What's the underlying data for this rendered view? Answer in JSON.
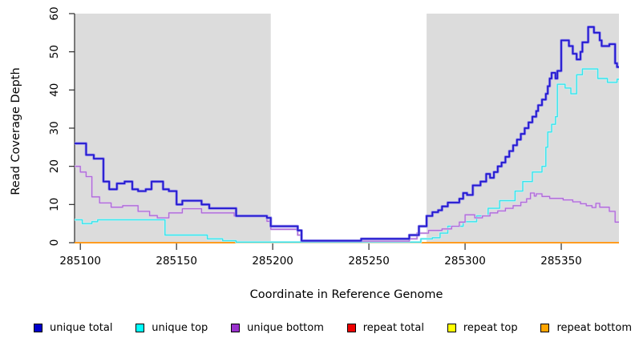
{
  "chart_data": {
    "type": "line",
    "step": true,
    "title": "",
    "xlabel": "Coordinate in Reference Genome",
    "ylabel": "Read Coverage Depth",
    "xlim": [
      285097,
      285380
    ],
    "ylim": [
      0,
      60
    ],
    "x_ticks": [
      285100,
      285150,
      285200,
      285250,
      285300,
      285350
    ],
    "y_ticks": [
      0,
      10,
      20,
      30,
      40,
      50,
      60
    ],
    "grid": false,
    "legend_position": "bottom",
    "background_color": "#ffffff",
    "shaded_band_color": "#dcdcdc",
    "shaded_regions": [
      {
        "name": "left-flank-band",
        "x0": 285097,
        "x1": 285199
      },
      {
        "name": "right-flank-band",
        "x0": 285280,
        "x1": 285380
      }
    ],
    "series": [
      {
        "name": "repeat total",
        "slug": "repeat-total",
        "in_legend": true,
        "line_color": "#e00000",
        "width": 1.6,
        "x_end": 285380,
        "steps": [
          [
            285097,
            0
          ]
        ]
      },
      {
        "name": "repeat top",
        "slug": "repeat-top",
        "in_legend": true,
        "line_color": "#ffff00",
        "width": 1.6,
        "x_end": 285380,
        "steps": [
          [
            285097,
            0
          ]
        ]
      },
      {
        "name": "repeat bottom",
        "slug": "repeat-bottom",
        "in_legend": true,
        "line_color": "#ff9c20",
        "width": 2,
        "x_end": 285380,
        "steps": [
          [
            285097,
            0
          ]
        ]
      },
      {
        "name": "zero overlap segment",
        "slug": "zero-overlap-segment",
        "in_legend": false,
        "line_color": "#8bcd8b",
        "width": 1.4,
        "x_end": 285272,
        "steps": [
          [
            285181,
            0.15
          ]
        ]
      },
      {
        "name": "unique top",
        "slug": "unique-top",
        "in_legend": true,
        "line_color": "#3ae2ea",
        "halo_color": "#c4f4f6",
        "width": 1.4,
        "halo_width": 2.8,
        "x_end": 285380,
        "steps": [
          [
            285097,
            6
          ],
          [
            285101,
            5
          ],
          [
            285106,
            5.5
          ],
          [
            285109,
            6
          ],
          [
            285144,
            2
          ],
          [
            285166,
            1
          ],
          [
            285174,
            0.5
          ],
          [
            285181,
            0.15
          ],
          [
            285277,
            1
          ],
          [
            285283,
            1.3
          ],
          [
            285287,
            2.5
          ],
          [
            285291,
            4.3
          ],
          [
            285299,
            5.5
          ],
          [
            285306,
            7
          ],
          [
            285312,
            9
          ],
          [
            285318,
            11
          ],
          [
            285326,
            13.5
          ],
          [
            285330,
            16
          ],
          [
            285335,
            18.5
          ],
          [
            285340,
            20
          ],
          [
            285342,
            25
          ],
          [
            285343,
            29
          ],
          [
            285345,
            31
          ],
          [
            285347,
            33
          ],
          [
            285348,
            41.5
          ],
          [
            285352,
            40.5
          ],
          [
            285355,
            39
          ],
          [
            285358,
            44
          ],
          [
            285361,
            45.5
          ],
          [
            285369,
            43
          ],
          [
            285374,
            42
          ],
          [
            285379,
            42.8
          ]
        ]
      },
      {
        "name": "unique bottom",
        "slug": "unique-bottom",
        "in_legend": true,
        "line_color": "#ae6fd6",
        "halo_color": "#e0c4ef",
        "width": 1.3,
        "halo_width": 2.6,
        "x_end": 285380,
        "steps": [
          [
            285097,
            20
          ],
          [
            285100,
            18.5
          ],
          [
            285103,
            17.3
          ],
          [
            285106,
            12
          ],
          [
            285110,
            10.4
          ],
          [
            285116,
            9.3
          ],
          [
            285122,
            9.7
          ],
          [
            285130,
            8.2
          ],
          [
            285136,
            7.1
          ],
          [
            285140,
            6.5
          ],
          [
            285146,
            7.8
          ],
          [
            285153,
            8.9
          ],
          [
            285163,
            7.8
          ],
          [
            285180,
            7
          ],
          [
            285197,
            5.6
          ],
          [
            285199,
            3.5
          ],
          [
            285213,
            2
          ],
          [
            285215,
            0.4
          ],
          [
            285271,
            1
          ],
          [
            285275,
            2.5
          ],
          [
            285281,
            3.2
          ],
          [
            285288,
            3.6
          ],
          [
            285293,
            4.3
          ],
          [
            285297,
            5.4
          ],
          [
            285300,
            7.3
          ],
          [
            285305,
            6.5
          ],
          [
            285309,
            7
          ],
          [
            285313,
            7.8
          ],
          [
            285317,
            8.3
          ],
          [
            285321,
            9
          ],
          [
            285325,
            9.7
          ],
          [
            285329,
            10.6
          ],
          [
            285332,
            11.5
          ],
          [
            285334,
            13
          ],
          [
            285336,
            12.2
          ],
          [
            285337,
            12.8
          ],
          [
            285340,
            12.1
          ],
          [
            285344,
            11.6
          ],
          [
            285351,
            11.2
          ],
          [
            285356,
            10.7
          ],
          [
            285360,
            10.2
          ],
          [
            285363,
            9.7
          ],
          [
            285366,
            9.2
          ],
          [
            285368,
            10.3
          ],
          [
            285370,
            9.3
          ],
          [
            285375,
            8.2
          ],
          [
            285378,
            5.4
          ]
        ]
      },
      {
        "name": "unique total",
        "slug": "unique-total",
        "in_legend": true,
        "line_color": "#2318cf",
        "halo_color": "#938cea",
        "width": 1.8,
        "halo_width": 3.4,
        "x_end": 285380,
        "steps": [
          [
            285097,
            26
          ],
          [
            285103,
            23
          ],
          [
            285107,
            22
          ],
          [
            285112,
            16
          ],
          [
            285115,
            14
          ],
          [
            285119,
            15.5
          ],
          [
            285123,
            16
          ],
          [
            285127,
            14
          ],
          [
            285130,
            13.5
          ],
          [
            285134,
            14
          ],
          [
            285137,
            16
          ],
          [
            285143,
            14
          ],
          [
            285146,
            13.5
          ],
          [
            285150,
            10
          ],
          [
            285153,
            11
          ],
          [
            285163,
            10
          ],
          [
            285167,
            9
          ],
          [
            285181,
            7
          ],
          [
            285197,
            6.5
          ],
          [
            285199,
            4.3
          ],
          [
            285213,
            3.2
          ],
          [
            285215,
            0.5
          ],
          [
            285246,
            1
          ],
          [
            285271,
            2
          ],
          [
            285276,
            4.3
          ],
          [
            285280,
            7
          ],
          [
            285283,
            8
          ],
          [
            285286,
            8.5
          ],
          [
            285288,
            9.5
          ],
          [
            285291,
            10.5
          ],
          [
            285297,
            11.5
          ],
          [
            285299,
            13
          ],
          [
            285301,
            12.5
          ],
          [
            285304,
            15
          ],
          [
            285308,
            16
          ],
          [
            285311,
            18
          ],
          [
            285313,
            17
          ],
          [
            285315,
            18.5
          ],
          [
            285317,
            20
          ],
          [
            285319,
            21
          ],
          [
            285321,
            22.5
          ],
          [
            285323,
            24
          ],
          [
            285325,
            25.5
          ],
          [
            285327,
            27
          ],
          [
            285329,
            28.5
          ],
          [
            285331,
            30
          ],
          [
            285333,
            31.5
          ],
          [
            285335,
            33
          ],
          [
            285337,
            34.5
          ],
          [
            285338,
            36
          ],
          [
            285340,
            37.5
          ],
          [
            285342,
            39
          ],
          [
            285343,
            41
          ],
          [
            285344,
            43
          ],
          [
            285345,
            44.5
          ],
          [
            285347,
            43
          ],
          [
            285348,
            45
          ],
          [
            285350,
            53
          ],
          [
            285354,
            51.5
          ],
          [
            285356,
            49.5
          ],
          [
            285358,
            48
          ],
          [
            285360,
            50
          ],
          [
            285361,
            52.5
          ],
          [
            285364,
            56.5
          ],
          [
            285367,
            55
          ],
          [
            285370,
            53
          ],
          [
            285371,
            51.5
          ],
          [
            285375,
            52
          ],
          [
            285378,
            47
          ],
          [
            285379,
            46
          ]
        ]
      }
    ]
  },
  "legend": {
    "items": [
      {
        "label": "unique total",
        "slug": "unique-total",
        "color": "#0000cc"
      },
      {
        "label": "unique top",
        "slug": "unique-top",
        "color": "#00ffff"
      },
      {
        "label": "unique bottom",
        "slug": "unique-bottom",
        "color": "#9932cc"
      },
      {
        "label": "repeat total",
        "slug": "repeat-total",
        "color": "#ee0000"
      },
      {
        "label": "repeat top",
        "slug": "repeat-top",
        "color": "#ffff00"
      },
      {
        "label": "repeat bottom",
        "slug": "repeat-bottom",
        "color": "#ffa500"
      }
    ]
  }
}
